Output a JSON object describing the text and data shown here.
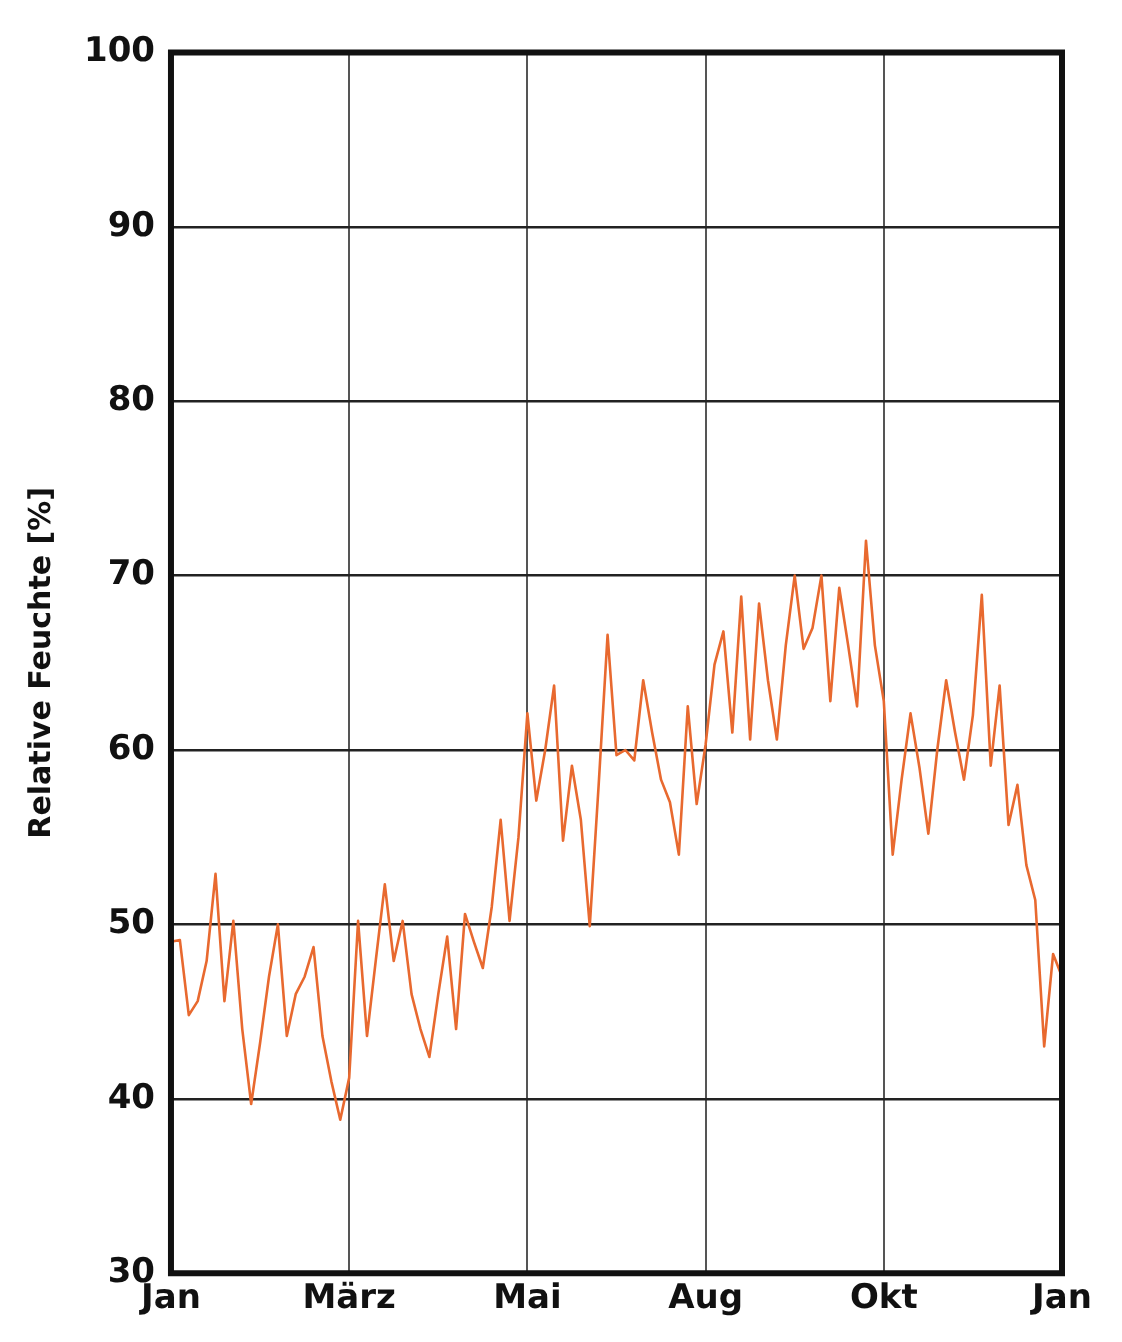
{
  "chart_data": {
    "type": "line",
    "ylabel": "Relative Feuchte [%]",
    "categories": [
      "Jan",
      null,
      null,
      null,
      null,
      null,
      null,
      null,
      null,
      null,
      null,
      null,
      null,
      null,
      null,
      null,
      null,
      null,
      null,
      null,
      "März",
      null,
      null,
      null,
      null,
      null,
      null,
      null,
      null,
      null,
      null,
      null,
      null,
      null,
      null,
      null,
      null,
      null,
      null,
      null,
      "Mai",
      null,
      null,
      null,
      null,
      null,
      null,
      null,
      null,
      null,
      null,
      null,
      null,
      null,
      null,
      null,
      null,
      null,
      null,
      null,
      "Aug",
      null,
      null,
      null,
      null,
      null,
      null,
      null,
      null,
      null,
      null,
      null,
      null,
      null,
      null,
      null,
      null,
      null,
      null,
      null,
      "Okt",
      null,
      null,
      null,
      null,
      null,
      null,
      null,
      null,
      null,
      null,
      null,
      null,
      null,
      null,
      null,
      null,
      null,
      null,
      null,
      "Jan"
    ],
    "ylim": [
      30,
      100
    ],
    "yticks": [
      30,
      40,
      50,
      60,
      70,
      80,
      90,
      100
    ],
    "grid": true,
    "marker": "none",
    "line_style": "solid",
    "series": [
      {
        "color": "#e8692f",
        "values": [
          49,
          49.1,
          44.8,
          45.6,
          47.9,
          52.9,
          45.6,
          50.2,
          44,
          39.7,
          43.2,
          47,
          50,
          43.6,
          46,
          47,
          48.7,
          43.6,
          41,
          38.8,
          41.2,
          50.2,
          43.6,
          48,
          52.3,
          47.9,
          50.2,
          46,
          44,
          42.4,
          46,
          49.3,
          44,
          50.6,
          49,
          47.5,
          51,
          56,
          50.2,
          55,
          62.1,
          57.1,
          60,
          63.7,
          54.8,
          59.1,
          56,
          49.9,
          58,
          66.6,
          59.7,
          60,
          59.4,
          64,
          61,
          58.3,
          57,
          54,
          62.5,
          56.9,
          60.3,
          64.9,
          66.8,
          61,
          68.8,
          60.6,
          68.4,
          64,
          60.6,
          66,
          70,
          65.8,
          67,
          70,
          62.8,
          69.3,
          66,
          62.5,
          72,
          66,
          62.8,
          54,
          58.3,
          62.1,
          59,
          55.2,
          60,
          64,
          61,
          58.3,
          62,
          68.9,
          59.1,
          63.7,
          55.7,
          58,
          53.4,
          51.4,
          43,
          48.3,
          47
        ]
      }
    ]
  }
}
